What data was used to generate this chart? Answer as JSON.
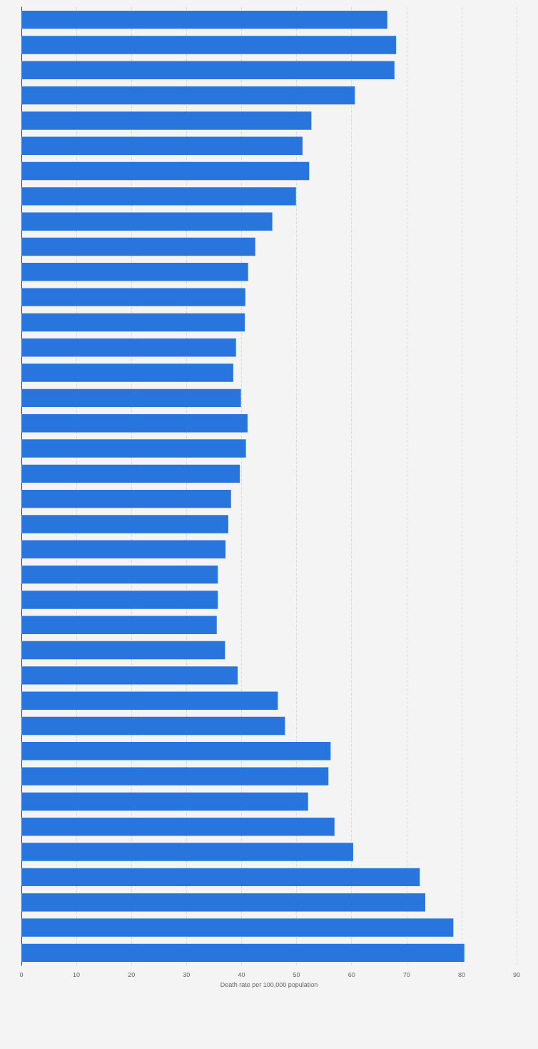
{
  "chart_data": {
    "type": "bar",
    "orientation": "horizontal",
    "xlabel": "Death rate per 100,000 population",
    "categories": [
      null,
      null,
      null,
      null,
      null,
      null,
      null,
      null,
      null,
      null,
      null,
      null,
      null,
      null,
      null,
      null,
      null,
      null,
      null,
      null,
      null,
      null,
      null,
      null,
      null,
      null,
      null,
      null,
      null,
      null,
      null,
      null,
      null,
      null,
      null,
      null,
      null,
      null
    ],
    "values": [
      66.5,
      68.1,
      67.8,
      60.6,
      52.7,
      51.1,
      52.3,
      49.9,
      45.6,
      42.5,
      41.2,
      40.7,
      40.6,
      39.0,
      38.5,
      39.9,
      41.1,
      40.8,
      39.7,
      38.1,
      37.6,
      37.1,
      35.7,
      35.7,
      35.5,
      37.0,
      39.3,
      46.6,
      47.9,
      56.2,
      55.8,
      52.1,
      56.9,
      60.3,
      72.4,
      73.4,
      78.5,
      80.5
    ],
    "color": "#2876dd",
    "xlim": [
      0,
      90
    ],
    "xticks": [
      0,
      10,
      20,
      30,
      40,
      50,
      60,
      70,
      80,
      90
    ],
    "grid": "x"
  }
}
